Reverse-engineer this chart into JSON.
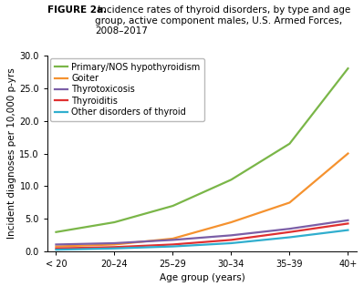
{
  "title_bold": "FIGURE 2a.",
  "title_rest": " Incidence rates of thyroid disorders, by type and age group, active component males, U.S. Armed Forces, 2008–2017",
  "age_groups": [
    "< 20",
    "20–24",
    "25–29",
    "30–34",
    "35–39",
    "40+"
  ],
  "series": [
    {
      "name": "Primary/NOS hypothyroidism",
      "color": "#7ab648",
      "values": [
        3.0,
        4.5,
        7.0,
        11.0,
        16.5,
        28.0
      ]
    },
    {
      "name": "Goiter",
      "color": "#f5922f",
      "values": [
        0.8,
        1.1,
        2.0,
        4.5,
        7.5,
        15.0
      ]
    },
    {
      "name": "Thyrotoxicosis",
      "color": "#7b5ea7",
      "values": [
        1.1,
        1.3,
        1.8,
        2.5,
        3.5,
        4.8
      ]
    },
    {
      "name": "Thyroiditis",
      "color": "#e03030",
      "values": [
        0.5,
        0.7,
        1.1,
        1.8,
        3.0,
        4.3
      ]
    },
    {
      "name": "Other disorders of thyroid",
      "color": "#30aece",
      "values": [
        0.3,
        0.5,
        0.8,
        1.3,
        2.2,
        3.3
      ]
    }
  ],
  "ylabel": "Incident diagnoses per 10,000 p-yrs",
  "xlabel": "Age group (years)",
  "ylim": [
    0,
    30.0
  ],
  "yticks": [
    0.0,
    5.0,
    10.0,
    15.0,
    20.0,
    25.0,
    30.0
  ],
  "background_color": "#ffffff",
  "legend_fontsize": 7.0,
  "axis_fontsize": 7.5,
  "tick_fontsize": 7.0,
  "title_fontsize": 7.5,
  "line_width": 1.6
}
